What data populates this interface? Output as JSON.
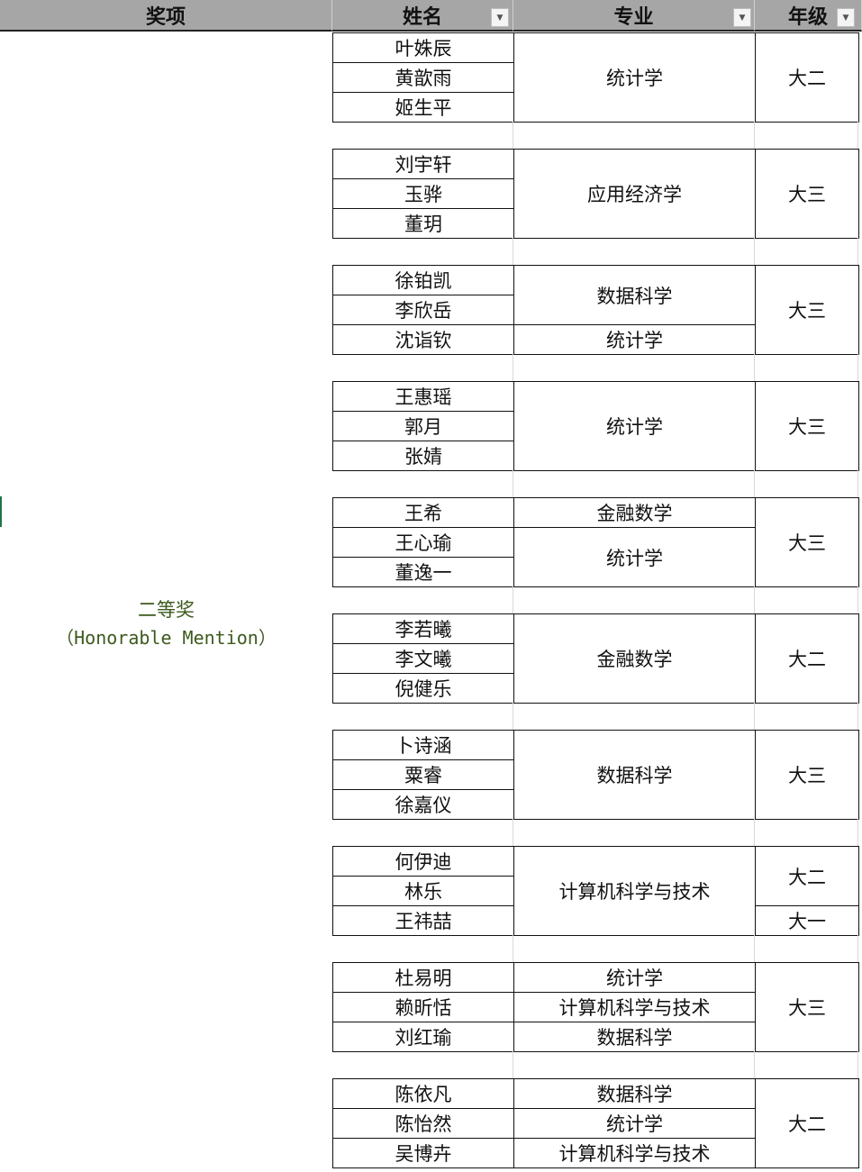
{
  "headers": {
    "award": "奖项",
    "name": "姓名",
    "major": "专业",
    "grade": "年级",
    "filter_icon": "chevron-down-icon"
  },
  "award": {
    "zh": "二等奖",
    "en": "（Honorable Mention）",
    "color": "#3d5a1e"
  },
  "groups": [
    {
      "names": [
        "叶姝辰",
        "黄歆雨",
        "姬生平"
      ],
      "majors": [
        {
          "text": "统计学",
          "span": 3
        }
      ],
      "grades": [
        {
          "text": "大二",
          "span": 3
        }
      ]
    },
    {
      "names": [
        "刘宇轩",
        "玉骅",
        "董玥"
      ],
      "majors": [
        {
          "text": "应用经济学",
          "span": 3
        }
      ],
      "grades": [
        {
          "text": "大三",
          "span": 3
        }
      ]
    },
    {
      "names": [
        "徐铂凯",
        "李欣岳",
        "沈诣钦"
      ],
      "majors": [
        {
          "text": "数据科学",
          "span": 2
        },
        {
          "text": "统计学",
          "span": 1
        }
      ],
      "grades": [
        {
          "text": "大三",
          "span": 3
        }
      ]
    },
    {
      "names": [
        "王惠瑶",
        "郭月",
        "张婧"
      ],
      "majors": [
        {
          "text": "统计学",
          "span": 3
        }
      ],
      "grades": [
        {
          "text": "大三",
          "span": 3
        }
      ]
    },
    {
      "names": [
        "王希",
        "王心瑜",
        "董逸一"
      ],
      "majors": [
        {
          "text": "金融数学",
          "span": 1
        },
        {
          "text": "统计学",
          "span": 2
        }
      ],
      "grades": [
        {
          "text": "大三",
          "span": 3
        }
      ]
    },
    {
      "names": [
        "李若曦",
        "李文曦",
        "倪健乐"
      ],
      "majors": [
        {
          "text": "金融数学",
          "span": 3
        }
      ],
      "grades": [
        {
          "text": "大二",
          "span": 3
        }
      ]
    },
    {
      "names": [
        "卜诗涵",
        "粟睿",
        "徐嘉仪"
      ],
      "majors": [
        {
          "text": "数据科学",
          "span": 3
        }
      ],
      "grades": [
        {
          "text": "大三",
          "span": 3
        }
      ]
    },
    {
      "names": [
        "何伊迪",
        "林乐",
        "王祎喆"
      ],
      "majors": [
        {
          "text": "计算机科学与技术",
          "span": 3
        }
      ],
      "grades": [
        {
          "text": "大二",
          "span": 2
        },
        {
          "text": "大一",
          "span": 1
        }
      ]
    },
    {
      "names": [
        "杜易明",
        "赖昕恬",
        "刘红瑜"
      ],
      "majors": [
        {
          "text": "统计学",
          "span": 1
        },
        {
          "text": "计算机科学与技术",
          "span": 1
        },
        {
          "text": "数据科学",
          "span": 1
        }
      ],
      "grades": [
        {
          "text": "大三",
          "span": 3
        }
      ]
    },
    {
      "names": [
        "陈依凡",
        "陈怡然",
        "吴博卉"
      ],
      "majors": [
        {
          "text": "数据科学",
          "span": 1
        },
        {
          "text": "统计学",
          "span": 1
        },
        {
          "text": "计算机科学与技术",
          "span": 1
        }
      ],
      "grades": [
        {
          "text": "大二",
          "span": 3
        }
      ]
    }
  ]
}
